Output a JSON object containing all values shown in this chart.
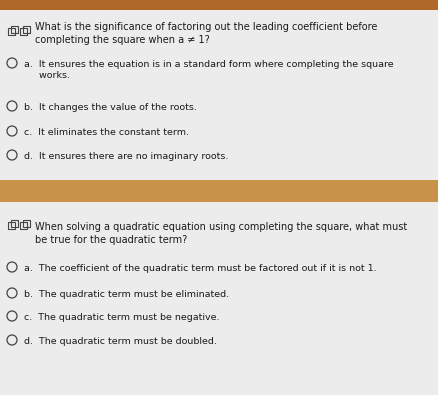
{
  "bg_top": "#e8e8e8",
  "bg_bottom": "#e8e8e8",
  "divider_color": "#c8924a",
  "divider_top_color": "#b06828",
  "text_color": "#1a1a1a",
  "circle_color": "#444444",
  "icon_color": "#444444",
  "fontsize_q": 7.0,
  "fontsize_opt": 6.8,
  "q1": {
    "question_line1": "What is the significance of factoring out the leading coefficient before",
    "question_line2": "completing the square when a ≠ 1?",
    "options": [
      [
        "a.  It ensures the equation is in a standard form where completing the square",
        "     works."
      ],
      [
        "b.  It changes the value of the roots."
      ],
      [
        "c.  It eliminates the constant term."
      ],
      [
        "d.  It ensures there are no imaginary roots."
      ]
    ]
  },
  "q2": {
    "question_line1": "When solving a quadratic equation using completing the square, what must",
    "question_line2": "be true for the quadratic term?",
    "options": [
      [
        "a.  The coefficient of the quadratic term must be factored out if it is not 1."
      ],
      [
        "b.  The quadratic term must be eliminated."
      ],
      [
        "c.  The quadratic term must be negative."
      ],
      [
        "d.  The quadratic term must be doubled."
      ]
    ]
  }
}
